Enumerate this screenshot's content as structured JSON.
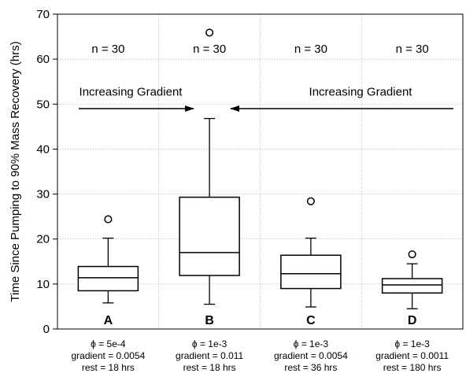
{
  "chart_data": {
    "type": "box",
    "ylabel": "Time Since Pumping to 90% Mass Recovery (hrs)",
    "ylim": [
      0,
      70
    ],
    "yticks": [
      0,
      10,
      20,
      30,
      40,
      50,
      60,
      70
    ],
    "grid": true,
    "groups": [
      {
        "letter": "A",
        "n_label": "n = 30",
        "phi": "ϕ = 5e-4",
        "gradient": "gradient = 0.0054",
        "rest": "rest = 18 hrs",
        "whisker_low": 5.8,
        "q1": 8.5,
        "median": 11.4,
        "q3": 13.9,
        "whisker_high": 20.2,
        "outliers": [
          24.4
        ]
      },
      {
        "letter": "B",
        "n_label": "n = 30",
        "phi": "ϕ = 1e-3",
        "gradient": "gradient = 0.011",
        "rest": "rest = 18 hrs",
        "whisker_low": 5.5,
        "q1": 11.9,
        "median": 17.0,
        "q3": 29.3,
        "whisker_high": 46.8,
        "outliers": [
          65.9
        ]
      },
      {
        "letter": "C",
        "n_label": "n = 30",
        "phi": "ϕ = 1e-3",
        "gradient": "gradient = 0.0054",
        "rest": "rest = 36 hrs",
        "whisker_low": 4.9,
        "q1": 9.0,
        "median": 12.3,
        "q3": 16.4,
        "whisker_high": 20.2,
        "outliers": [
          28.4
        ]
      },
      {
        "letter": "D",
        "n_label": "n = 30",
        "phi": "ϕ = 1e-3",
        "gradient": "gradient = 0.0011",
        "rest": "rest = 180 hrs",
        "whisker_low": 4.5,
        "q1": 8.0,
        "median": 9.8,
        "q3": 11.2,
        "whisker_high": 14.5,
        "outliers": [
          16.6
        ]
      }
    ],
    "annotations": [
      {
        "text": "Increasing Gradient",
        "arrow_from_group": 0,
        "arrow_to_group": 1,
        "y": 52.8,
        "arrow_y": 49.0
      },
      {
        "text": "Increasing Gradient",
        "arrow_from_group": 3,
        "arrow_to_group": 1,
        "y": 52.8,
        "arrow_y": 49.0
      }
    ]
  }
}
